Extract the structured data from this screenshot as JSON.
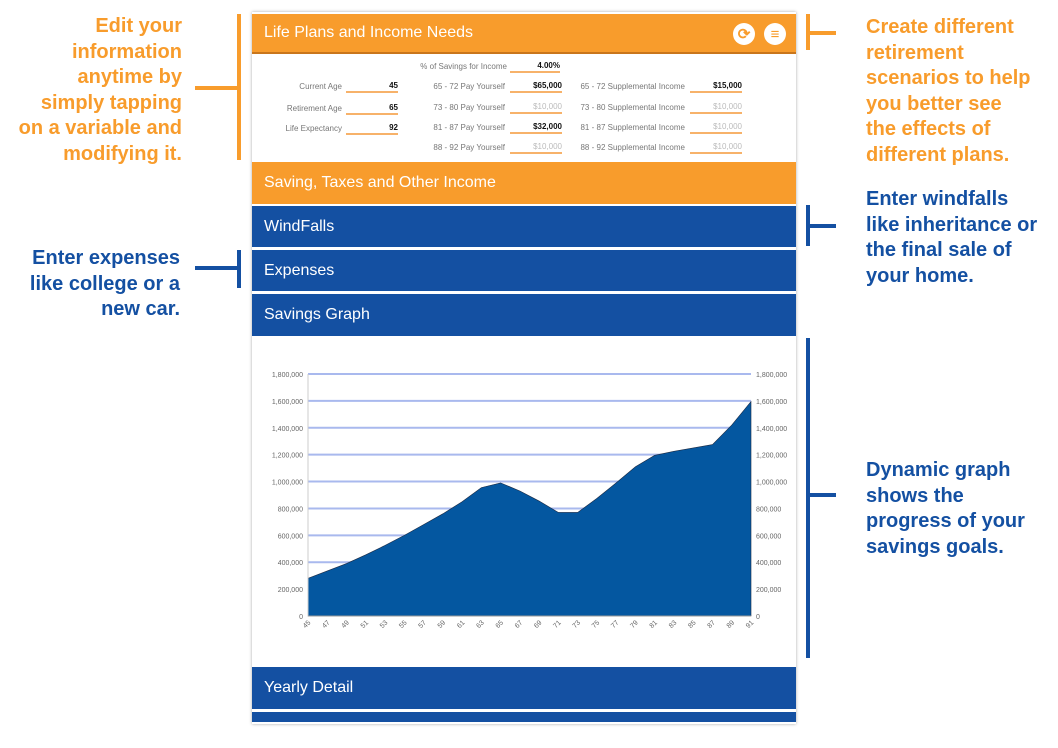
{
  "annotations": {
    "edit": [
      "Edit your",
      "information",
      "anytime by",
      "simply tapping",
      "on a variable and",
      "modifying it."
    ],
    "scenarios": [
      "Create different",
      "retirement",
      "scenarios to help",
      "you better see",
      "the effects of",
      "different plans."
    ],
    "windfalls": [
      "Enter windfalls",
      "like inheritance or",
      "the final sale of",
      "your home."
    ],
    "expenses": [
      "Enter expenses",
      "like college or a",
      "new car."
    ],
    "graph": [
      "Dynamic graph",
      "shows the",
      "progress of your",
      "savings goals."
    ]
  },
  "colors": {
    "orange": "#f89c2c",
    "blue": "#1450a2",
    "area": "#0457a0"
  },
  "header": {
    "title": "Life Plans and Income Needs",
    "icons": [
      "refresh-icon",
      "menu-icon"
    ]
  },
  "form": {
    "savings_pct": {
      "label": "% of Savings for Income",
      "value": "4.00%"
    },
    "left": [
      {
        "label": "Current Age",
        "value": "45"
      },
      {
        "label": "Retirement Age",
        "value": "65"
      },
      {
        "label": "Life Expectancy",
        "value": "92"
      }
    ],
    "pay": [
      {
        "label": "65 - 72 Pay Yourself",
        "value": "$65,000",
        "set": true
      },
      {
        "label": "73 - 80 Pay Yourself",
        "value": "$10,000",
        "set": false
      },
      {
        "label": "81 - 87 Pay Yourself",
        "value": "$32,000",
        "set": true
      },
      {
        "label": "88 - 92 Pay Yourself",
        "value": "$10,000",
        "set": false
      }
    ],
    "supp": [
      {
        "label": "65 - 72 Supplemental Income",
        "value": "$15,000",
        "set": true
      },
      {
        "label": "73 - 80 Supplemental Income",
        "value": "$10,000",
        "set": false
      },
      {
        "label": "81 - 87 Supplemental Income",
        "value": "$10,000",
        "set": false
      },
      {
        "label": "88 - 92 Supplemental Income",
        "value": "$10,000",
        "set": false
      }
    ]
  },
  "sections": {
    "saving": "Saving, Taxes and Other Income",
    "windfalls": "WindFalls",
    "expenses": "Expenses",
    "graph": "Savings Graph",
    "yearly": "Yearly Detail"
  },
  "chart_data": {
    "type": "area",
    "x": [
      45,
      47,
      49,
      51,
      53,
      55,
      57,
      59,
      61,
      63,
      65,
      67,
      69,
      71,
      73,
      75,
      77,
      79,
      81,
      83,
      85,
      87,
      89,
      91
    ],
    "values": [
      280000,
      335000,
      390000,
      455000,
      525000,
      600000,
      680000,
      760000,
      850000,
      955000,
      990000,
      930000,
      855000,
      770000,
      770000,
      875000,
      990000,
      1110000,
      1195000,
      1225000,
      1250000,
      1275000,
      1420000,
      1595000
    ],
    "ylim": [
      0,
      1800000
    ],
    "yticks": [
      "0",
      "200,000",
      "400,000",
      "600,000",
      "800,000",
      "1,000,000",
      "1,200,000",
      "1,400,000",
      "1,600,000",
      "1,800,000"
    ],
    "grid": true,
    "dual_y_axis": true
  }
}
